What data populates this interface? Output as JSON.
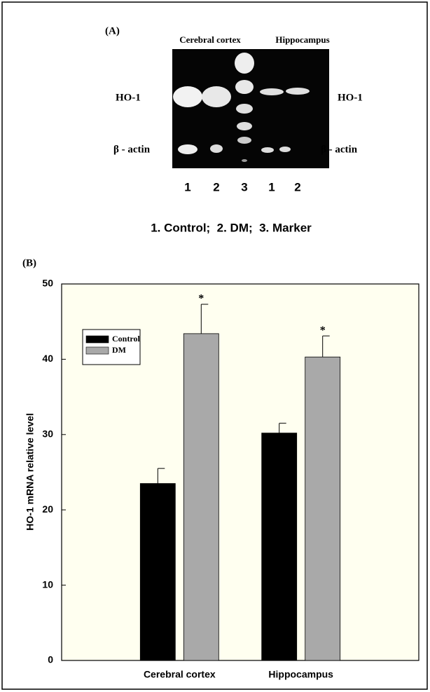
{
  "panel_a": {
    "label": "(A)",
    "region_left": "Cerebral cortex",
    "region_right": "Hippocampus",
    "band_top_left": "HO-1",
    "band_top_right": "HO-1",
    "band_bottom_left": "β - actin",
    "band_bottom_right": "β - actin",
    "lanes": [
      "1",
      "2",
      "3",
      "1",
      "2"
    ],
    "legend": "1. Control;  2. DM;  3. Marker"
  },
  "chart_data": {
    "type": "bar",
    "panel_label": "(B)",
    "categories": [
      "Cerebral cortex",
      "Hippocampus"
    ],
    "y_label": "HO-1 mRNA relative level",
    "series": [
      {
        "name": "Control",
        "color": "#000000",
        "values": [
          23.5,
          30.2
        ],
        "errors": [
          2.0,
          1.3
        ]
      },
      {
        "name": "DM",
        "color": "#a9a9a9",
        "values": [
          43.4,
          40.3
        ],
        "errors": [
          3.9,
          2.8
        ],
        "annotations": [
          "*",
          "*"
        ]
      }
    ],
    "ylim": [
      0,
      50
    ],
    "yticks": [
      0,
      10,
      20,
      30,
      40,
      50
    ],
    "legend": "upper left",
    "background": "#fffff0"
  }
}
